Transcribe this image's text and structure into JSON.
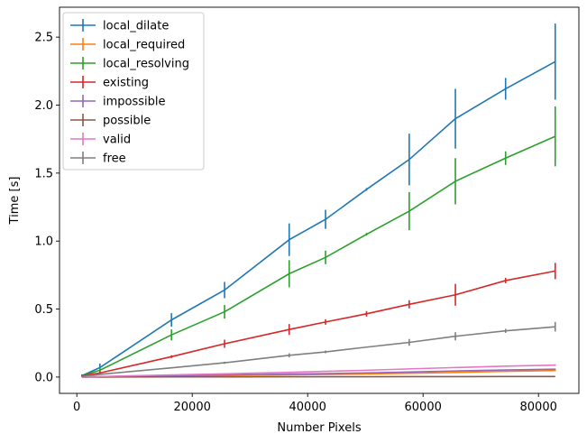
{
  "chart_data": {
    "type": "line",
    "title": "",
    "xlabel": "Number Pixels",
    "ylabel": "Time [s]",
    "xlim": [
      -3000,
      87000
    ],
    "ylim": [
      -0.12,
      2.72
    ],
    "xticks": [
      0,
      20000,
      40000,
      60000,
      80000
    ],
    "xtick_labels": [
      "0",
      "20000",
      "40000",
      "60000",
      "80000"
    ],
    "yticks": [
      0.0,
      0.5,
      1.0,
      1.5,
      2.0,
      2.5
    ],
    "ytick_labels": [
      "0.0",
      "0.5",
      "1.0",
      "1.5",
      "2.0",
      "2.5"
    ],
    "grid": false,
    "legend_position": "top-left",
    "x": [
      900,
      4000,
      16400,
      25600,
      36800,
      43100,
      50200,
      57600,
      65600,
      74300,
      82900
    ],
    "series": [
      {
        "name": "local_dilate",
        "color": "#1f77b4",
        "values": [
          0.01,
          0.07,
          0.42,
          0.64,
          1.01,
          1.16,
          1.38,
          1.6,
          1.9,
          2.12,
          2.32
        ],
        "errors": [
          0.01,
          0.03,
          0.05,
          0.06,
          0.12,
          0.07,
          0.01,
          0.19,
          0.22,
          0.08,
          0.28
        ]
      },
      {
        "name": "local_required",
        "color": "#ff7f0e",
        "values": [
          0.0,
          0.002,
          0.007,
          0.011,
          0.016,
          0.019,
          0.023,
          0.028,
          0.034,
          0.042,
          0.048
        ],
        "errors": [
          0.0,
          0.001,
          0.001,
          0.001,
          0.002,
          0.002,
          0.002,
          0.003,
          0.004,
          0.004,
          0.005
        ]
      },
      {
        "name": "local_resolving",
        "color": "#2ca02c",
        "values": [
          0.01,
          0.05,
          0.31,
          0.48,
          0.76,
          0.88,
          1.05,
          1.22,
          1.44,
          1.61,
          1.77
        ],
        "errors": [
          0.01,
          0.02,
          0.04,
          0.05,
          0.1,
          0.05,
          0.01,
          0.14,
          0.17,
          0.05,
          0.22
        ]
      },
      {
        "name": "existing",
        "color": "#d62728",
        "values": [
          0.01,
          0.03,
          0.15,
          0.245,
          0.35,
          0.405,
          0.465,
          0.535,
          0.605,
          0.71,
          0.78
        ],
        "errors": [
          0.005,
          0.01,
          0.01,
          0.03,
          0.04,
          0.02,
          0.02,
          0.03,
          0.08,
          0.02,
          0.06
        ]
      },
      {
        "name": "impossible",
        "color": "#9467bd",
        "values": [
          0.0,
          0.002,
          0.01,
          0.015,
          0.022,
          0.026,
          0.031,
          0.037,
          0.045,
          0.052,
          0.058
        ],
        "errors": [
          0.0,
          0.0,
          0.001,
          0.001,
          0.002,
          0.002,
          0.002,
          0.003,
          0.003,
          0.004,
          0.004
        ]
      },
      {
        "name": "possible",
        "color": "#8c564b",
        "values": [
          0.0,
          0.0,
          0.001,
          0.001,
          0.002,
          0.002,
          0.002,
          0.003,
          0.003,
          0.004,
          0.004
        ],
        "errors": [
          0.0,
          0.0,
          0.0,
          0.0,
          0.0,
          0.0,
          0.0,
          0.0,
          0.0,
          0.0,
          0.0
        ]
      },
      {
        "name": "valid",
        "color": "#e377c2",
        "values": [
          0.0,
          0.004,
          0.016,
          0.024,
          0.035,
          0.042,
          0.05,
          0.06,
          0.07,
          0.08,
          0.088
        ],
        "errors": [
          0.0,
          0.001,
          0.002,
          0.002,
          0.003,
          0.003,
          0.003,
          0.004,
          0.005,
          0.005,
          0.006
        ]
      },
      {
        "name": "free",
        "color": "#7f7f7f",
        "values": [
          0.005,
          0.02,
          0.068,
          0.105,
          0.16,
          0.185,
          0.22,
          0.255,
          0.3,
          0.34,
          0.37
        ],
        "errors": [
          0.002,
          0.005,
          0.005,
          0.008,
          0.015,
          0.01,
          0.005,
          0.025,
          0.03,
          0.015,
          0.035
        ]
      }
    ]
  }
}
